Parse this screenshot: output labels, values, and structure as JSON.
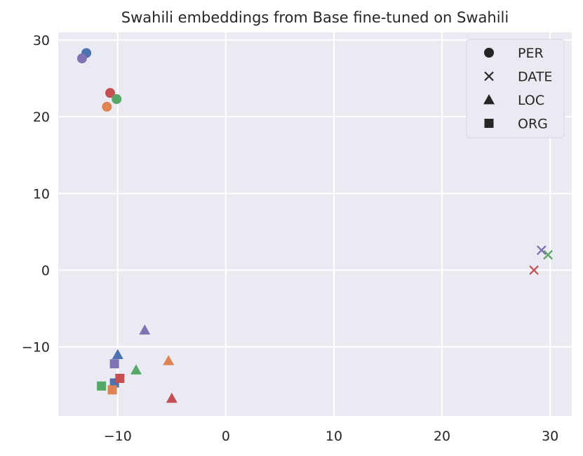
{
  "chart_data": {
    "type": "scatter",
    "title": "Swahili embeddings from Base fine-tuned on Swahili",
    "xlabel": "",
    "ylabel": "",
    "xlim": [
      -15.5,
      32
    ],
    "ylim": [
      -19,
      31
    ],
    "xticks": [
      -10,
      0,
      10,
      20,
      30
    ],
    "yticks": [
      -10,
      0,
      10,
      20,
      30
    ],
    "xtick_labels": [
      "−10",
      "0",
      "10",
      "20",
      "30"
    ],
    "ytick_labels": [
      "−10",
      "0",
      "10",
      "20",
      "30"
    ],
    "grid": true,
    "legend_position": "top-right",
    "legend": [
      {
        "label": "PER",
        "marker": "circle"
      },
      {
        "label": "DATE",
        "marker": "x"
      },
      {
        "label": "LOC",
        "marker": "triangle"
      },
      {
        "label": "ORG",
        "marker": "square"
      }
    ],
    "colors": {
      "blue": "#4c72b0",
      "orange": "#dd8452",
      "green": "#55a868",
      "red": "#c44e52",
      "purple": "#8172b3",
      "background": "#eaeaf2",
      "grid": "#ffffff",
      "text": "#262626"
    },
    "points": [
      {
        "label": "PER",
        "color": "blue",
        "x": -12.9,
        "y": 28.3
      },
      {
        "label": "PER",
        "color": "purple",
        "x": -13.3,
        "y": 27.6
      },
      {
        "label": "PER",
        "color": "red",
        "x": -10.7,
        "y": 23.1
      },
      {
        "label": "PER",
        "color": "green",
        "x": -10.1,
        "y": 22.3
      },
      {
        "label": "PER",
        "color": "orange",
        "x": -11.0,
        "y": 21.3
      },
      {
        "label": "DATE",
        "color": "blue",
        "x": 29.2,
        "y": 2.6
      },
      {
        "label": "DATE",
        "color": "purple",
        "x": 29.2,
        "y": 2.6
      },
      {
        "label": "DATE",
        "color": "orange",
        "x": 29.8,
        "y": 2.0
      },
      {
        "label": "DATE",
        "color": "green",
        "x": 29.8,
        "y": 2.0
      },
      {
        "label": "DATE",
        "color": "red",
        "x": 28.5,
        "y": 0.0
      },
      {
        "label": "LOC",
        "color": "purple",
        "x": -7.5,
        "y": -7.8
      },
      {
        "label": "LOC",
        "color": "blue",
        "x": -10.0,
        "y": -11.0
      },
      {
        "label": "LOC",
        "color": "orange",
        "x": -5.3,
        "y": -11.8
      },
      {
        "label": "LOC",
        "color": "green",
        "x": -8.3,
        "y": -13.0
      },
      {
        "label": "LOC",
        "color": "red",
        "x": -5.0,
        "y": -16.7
      },
      {
        "label": "ORG",
        "color": "purple",
        "x": -10.3,
        "y": -12.2
      },
      {
        "label": "ORG",
        "color": "blue",
        "x": -10.3,
        "y": -14.7
      },
      {
        "label": "ORG",
        "color": "red",
        "x": -9.8,
        "y": -14.1
      },
      {
        "label": "ORG",
        "color": "green",
        "x": -11.5,
        "y": -15.1
      },
      {
        "label": "ORG",
        "color": "orange",
        "x": -10.5,
        "y": -15.6
      }
    ]
  }
}
